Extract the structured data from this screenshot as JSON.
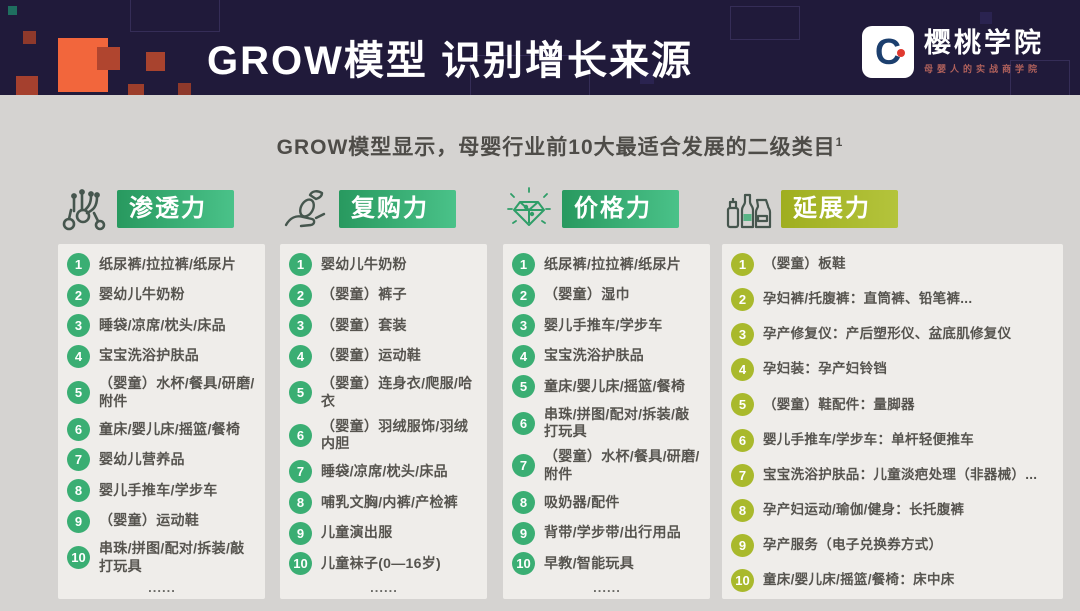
{
  "header": {
    "title": "GROW模型  识别增长来源",
    "logo": {
      "monogram": "C",
      "name": "樱桃学院",
      "tagline": "母婴人的实战商学院"
    }
  },
  "subtitle": {
    "text": "GROW模型显示，母婴行业前10大最适合发展的二级类目",
    "superscript": "1"
  },
  "colors": {
    "header_bg": "#201a3a",
    "page_bg": "#d5d3d1",
    "panel_bg": "#efedea",
    "orange": "#f2663c",
    "green": "#3aae73",
    "green_dark": "#28995f",
    "green_light": "#4ac289",
    "olive": "#a9b92c",
    "logo_blue": "#1c3f6e",
    "logo_red": "#e0392f"
  },
  "columns": [
    {
      "label": "渗透力",
      "icon": "network-nodes-icon",
      "theme": "green",
      "footer_dots": "......",
      "items": [
        "纸尿裤/拉拉裤/纸尿片",
        "婴幼儿牛奶粉",
        "睡袋/凉席/枕头/床品",
        "宝宝洗浴护肤品",
        "（婴童）水杯/餐具/研磨/附件",
        "童床/婴儿床/摇篮/餐椅",
        "婴幼儿营养品",
        "婴儿手推车/学步车",
        "（婴童）运动鞋",
        "串珠/拼图/配对/拆装/敲打玩具"
      ]
    },
    {
      "label": "复购力",
      "icon": "hand-coin-icon",
      "theme": "green",
      "footer_dots": "......",
      "items": [
        "婴幼儿牛奶粉",
        "（婴童）裤子",
        "（婴童）套装",
        "（婴童）运动鞋",
        "（婴童）连身衣/爬服/哈衣",
        "（婴童）羽绒服饰/羽绒内胆",
        "睡袋/凉席/枕头/床品",
        "哺乳文胸/内裤/产检裤",
        "儿童演出服",
        "儿童袜子(0—16岁)"
      ]
    },
    {
      "label": "价格力",
      "icon": "diamond-icon",
      "theme": "green",
      "footer_dots": "......",
      "items": [
        "纸尿裤/拉拉裤/纸尿片",
        "（婴童）湿巾",
        "婴儿手推车/学步车",
        "宝宝洗浴护肤品",
        "童床/婴儿床/摇篮/餐椅",
        "串珠/拼图/配对/拆装/敲打玩具",
        "（婴童）水杯/餐具/研磨/附件",
        "吸奶器/配件",
        "背带/学步带/出行用品",
        "早教/智能玩具"
      ]
    },
    {
      "label": "延展力",
      "icon": "bottles-icon",
      "theme": "olive",
      "footer_dots": "",
      "items": [
        "（婴童）板鞋",
        "孕妇裤/托腹裤：直筒裤、铅笔裤...",
        "孕产修复仪：产后塑形仪、盆底肌修复仪",
        "孕妇装：孕产妇铃铛",
        "（婴童）鞋配件：量脚器",
        "婴儿手推车/学步车：单杆轻便推车",
        "宝宝洗浴护肤品：儿童淡疤处理（非器械）...",
        "孕产妇运动/瑜伽/健身：长托腹裤",
        "孕产服务（电子兑换券方式）",
        "童床/婴儿床/摇篮/餐椅：床中床"
      ]
    }
  ]
}
